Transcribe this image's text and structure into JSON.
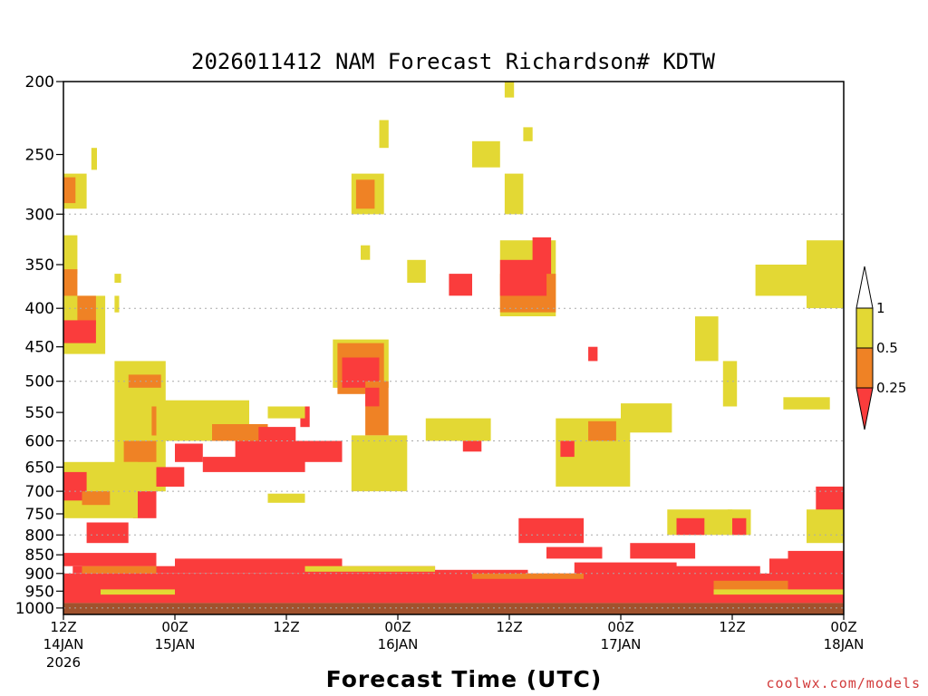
{
  "chart_data": {
    "type": "heatmap",
    "title": "2026011412 NAM Forecast Richardson# KDTW",
    "xlabel": "Forecast Time (UTC)",
    "ylabel": "",
    "credit": "coolwx.com/models",
    "y_scale": "log",
    "y_inverted": true,
    "ylim": [
      200,
      1020
    ],
    "y_ticks": [
      200,
      250,
      300,
      350,
      400,
      450,
      500,
      550,
      600,
      650,
      700,
      750,
      800,
      850,
      900,
      950,
      1000
    ],
    "y_gridlines": [
      300,
      400,
      500,
      600,
      700,
      800,
      900,
      1000
    ],
    "x_hours_range": [
      0,
      84
    ],
    "x_ticks": [
      {
        "hour": 0,
        "line1": "12Z",
        "line2": "14JAN",
        "line3": "2026"
      },
      {
        "hour": 12,
        "line1": "00Z",
        "line2": "15JAN",
        "line3": ""
      },
      {
        "hour": 24,
        "line1": "12Z",
        "line2": "",
        "line3": ""
      },
      {
        "hour": 36,
        "line1": "00Z",
        "line2": "16JAN",
        "line3": ""
      },
      {
        "hour": 48,
        "line1": "12Z",
        "line2": "",
        "line3": ""
      },
      {
        "hour": 60,
        "line1": "00Z",
        "line2": "17JAN",
        "line3": ""
      },
      {
        "hour": 72,
        "line1": "12Z",
        "line2": "",
        "line3": ""
      },
      {
        "hour": 84,
        "line1": "00Z",
        "line2": "18JAN",
        "line3": ""
      }
    ],
    "colorbar": {
      "labels": [
        "1",
        "0.5",
        "0.25"
      ],
      "colors": {
        "gt1": "#ffffff",
        "lt1": "#e3d834",
        "lt0_5": "#ef8225",
        "lt0_25": "#fa3c3c"
      }
    },
    "below_ground": {
      "from_pressure": 985,
      "color": "#a0522d"
    },
    "grid_color": "#aaaaaa",
    "regions": [
      {
        "level": "lt1",
        "h": [
          0,
          2.5
        ],
        "p": [
          265,
          295
        ]
      },
      {
        "level": "lt0_5",
        "h": [
          0,
          1.3
        ],
        "p": [
          268,
          290
        ]
      },
      {
        "level": "lt1",
        "h": [
          3,
          3.6
        ],
        "p": [
          245,
          262
        ]
      },
      {
        "level": "lt1",
        "h": [
          0,
          1.5
        ],
        "p": [
          320,
          360
        ]
      },
      {
        "level": "lt0_5",
        "h": [
          0,
          1.5
        ],
        "p": [
          355,
          390
        ]
      },
      {
        "level": "lt1",
        "h": [
          0,
          4.5
        ],
        "p": [
          385,
          460
        ]
      },
      {
        "level": "lt0_5",
        "h": [
          1.5,
          3.5
        ],
        "p": [
          385,
          420
        ]
      },
      {
        "level": "lt0_25",
        "h": [
          0,
          3.5
        ],
        "p": [
          415,
          445
        ]
      },
      {
        "level": "lt1",
        "h": [
          5.5,
          6
        ],
        "p": [
          385,
          405
        ]
      },
      {
        "level": "lt1",
        "h": [
          5.5,
          6.2
        ],
        "p": [
          360,
          370
        ]
      },
      {
        "level": "lt1",
        "h": [
          5.5,
          11
        ],
        "p": [
          470,
          700
        ]
      },
      {
        "level": "lt0_5",
        "h": [
          7,
          10.5
        ],
        "p": [
          490,
          510
        ]
      },
      {
        "level": "lt0_5",
        "h": [
          9.5,
          11.5
        ],
        "p": [
          540,
          590
        ]
      },
      {
        "level": "lt0_5",
        "h": [
          6.5,
          10
        ],
        "p": [
          600,
          640
        ]
      },
      {
        "level": "lt0_25",
        "h": [
          12,
          15
        ],
        "p": [
          605,
          640
        ]
      },
      {
        "level": "lt0_25",
        "h": [
          10,
          13
        ],
        "p": [
          650,
          690
        ]
      },
      {
        "level": "lt0_25",
        "h": [
          7.5,
          10
        ],
        "p": [
          700,
          760
        ]
      },
      {
        "level": "lt1",
        "h": [
          0,
          8
        ],
        "p": [
          640,
          760
        ]
      },
      {
        "level": "lt0_25",
        "h": [
          0,
          2.5
        ],
        "p": [
          660,
          720
        ]
      },
      {
        "level": "lt0_5",
        "h": [
          2,
          5
        ],
        "p": [
          700,
          730
        ]
      },
      {
        "level": "lt0_25",
        "h": [
          2.5,
          7
        ],
        "p": [
          770,
          820
        ]
      },
      {
        "level": "lt0_25",
        "h": [
          0,
          10
        ],
        "p": [
          845,
          880
        ]
      },
      {
        "level": "lt1",
        "h": [
          10,
          20
        ],
        "p": [
          530,
          600
        ]
      },
      {
        "level": "lt0_5",
        "h": [
          16,
          22
        ],
        "p": [
          570,
          600
        ]
      },
      {
        "level": "lt0_25",
        "h": [
          15,
          26
        ],
        "p": [
          630,
          660
        ]
      },
      {
        "level": "lt0_25",
        "h": [
          18.5,
          30
        ],
        "p": [
          600,
          640
        ]
      },
      {
        "level": "lt0_25",
        "h": [
          21,
          25
        ],
        "p": [
          575,
          600
        ]
      },
      {
        "level": "lt0_25",
        "h": [
          25.5,
          26.5
        ],
        "p": [
          540,
          575
        ]
      },
      {
        "level": "lt1",
        "h": [
          22,
          26
        ],
        "p": [
          540,
          560
        ]
      },
      {
        "level": "lt1",
        "h": [
          22,
          26
        ],
        "p": [
          705,
          725
        ]
      },
      {
        "level": "lt1",
        "h": [
          29,
          35
        ],
        "p": [
          440,
          510
        ]
      },
      {
        "level": "lt0_5",
        "h": [
          29.5,
          34.5
        ],
        "p": [
          445,
          520
        ]
      },
      {
        "level": "lt0_25",
        "h": [
          30,
          34
        ],
        "p": [
          465,
          510
        ]
      },
      {
        "level": "lt0_5",
        "h": [
          32.5,
          35
        ],
        "p": [
          500,
          590
        ]
      },
      {
        "level": "lt0_25",
        "h": [
          32.5,
          34
        ],
        "p": [
          510,
          540
        ]
      },
      {
        "level": "lt1",
        "h": [
          31,
          34.5
        ],
        "p": [
          265,
          300
        ]
      },
      {
        "level": "lt0_5",
        "h": [
          31.5,
          33.5
        ],
        "p": [
          270,
          295
        ]
      },
      {
        "level": "lt1",
        "h": [
          34,
          35
        ],
        "p": [
          225,
          245
        ]
      },
      {
        "level": "lt1",
        "h": [
          32,
          33
        ],
        "p": [
          330,
          345
        ]
      },
      {
        "level": "lt1",
        "h": [
          31,
          37
        ],
        "p": [
          590,
          700
        ]
      },
      {
        "level": "lt1",
        "h": [
          37,
          39
        ],
        "p": [
          345,
          370
        ]
      },
      {
        "level": "lt0_25",
        "h": [
          41.5,
          44
        ],
        "p": [
          360,
          385
        ]
      },
      {
        "level": "lt1",
        "h": [
          39,
          46
        ],
        "p": [
          560,
          600
        ]
      },
      {
        "level": "lt0_25",
        "h": [
          43,
          45
        ],
        "p": [
          600,
          620
        ]
      },
      {
        "level": "lt1",
        "h": [
          44,
          47
        ],
        "p": [
          240,
          260
        ]
      },
      {
        "level": "lt1",
        "h": [
          47,
          53
        ],
        "p": [
          325,
          410
        ]
      },
      {
        "level": "lt0_5",
        "h": [
          47,
          53
        ],
        "p": [
          360,
          405
        ]
      },
      {
        "level": "lt0_25",
        "h": [
          47,
          52
        ],
        "p": [
          345,
          385
        ]
      },
      {
        "level": "lt0_25",
        "h": [
          50.5,
          52.5
        ],
        "p": [
          322,
          360
        ]
      },
      {
        "level": "lt1",
        "h": [
          47.5,
          49.5
        ],
        "p": [
          265,
          300
        ]
      },
      {
        "level": "lt1",
        "h": [
          47.5,
          48.5
        ],
        "p": [
          200,
          210
        ]
      },
      {
        "level": "lt1",
        "h": [
          49.5,
          50.5
        ],
        "p": [
          230,
          240
        ]
      },
      {
        "level": "lt0_25",
        "h": [
          56.5,
          57.5
        ],
        "p": [
          450,
          470
        ]
      },
      {
        "level": "lt1",
        "h": [
          53,
          61
        ],
        "p": [
          560,
          690
        ]
      },
      {
        "level": "lt0_5",
        "h": [
          56.5,
          59.5
        ],
        "p": [
          565,
          600
        ]
      },
      {
        "level": "lt0_25",
        "h": [
          53.5,
          55
        ],
        "p": [
          600,
          630
        ]
      },
      {
        "level": "lt1",
        "h": [
          60,
          65.5
        ],
        "p": [
          535,
          585
        ]
      },
      {
        "level": "lt1",
        "h": [
          68,
          70.5
        ],
        "p": [
          410,
          470
        ]
      },
      {
        "level": "lt1",
        "h": [
          71,
          72.5
        ],
        "p": [
          470,
          540
        ]
      },
      {
        "level": "lt1",
        "h": [
          74.5,
          84
        ],
        "p": [
          350,
          385
        ]
      },
      {
        "level": "lt1",
        "h": [
          80,
          84
        ],
        "p": [
          325,
          400
        ]
      },
      {
        "level": "lt1",
        "h": [
          77.5,
          82.5
        ],
        "p": [
          525,
          545
        ]
      },
      {
        "level": "lt1",
        "h": [
          65,
          72
        ],
        "p": [
          740,
          800
        ]
      },
      {
        "level": "lt0_25",
        "h": [
          66,
          69
        ],
        "p": [
          760,
          800
        ]
      },
      {
        "level": "lt1",
        "h": [
          71.5,
          74
        ],
        "p": [
          740,
          800
        ]
      },
      {
        "level": "lt0_25",
        "h": [
          72,
          73.5
        ],
        "p": [
          760,
          800
        ]
      },
      {
        "level": "lt0_25",
        "h": [
          81,
          84
        ],
        "p": [
          690,
          760
        ]
      },
      {
        "level": "lt1",
        "h": [
          80,
          84
        ],
        "p": [
          740,
          820
        ]
      },
      {
        "level": "lt0_25",
        "h": [
          78,
          84
        ],
        "p": [
          840,
          880
        ]
      },
      {
        "level": "lt0_25",
        "h": [
          49,
          56
        ],
        "p": [
          760,
          820
        ]
      },
      {
        "level": "lt0_25",
        "h": [
          52,
          58
        ],
        "p": [
          830,
          860
        ]
      },
      {
        "level": "lt0_25",
        "h": [
          61,
          68
        ],
        "p": [
          820,
          860
        ]
      },
      {
        "level": "lt0_25",
        "h": [
          0,
          84
        ],
        "p": [
          900,
          985
        ]
      },
      {
        "level": "lt0_25",
        "h": [
          1,
          12
        ],
        "p": [
          880,
          900
        ]
      },
      {
        "level": "lt0_25",
        "h": [
          12,
          30
        ],
        "p": [
          860,
          900
        ]
      },
      {
        "level": "lt0_25",
        "h": [
          25,
          40
        ],
        "p": [
          880,
          900
        ]
      },
      {
        "level": "lt0_25",
        "h": [
          40,
          50
        ],
        "p": [
          890,
          905
        ]
      },
      {
        "level": "lt0_25",
        "h": [
          55,
          66
        ],
        "p": [
          870,
          905
        ]
      },
      {
        "level": "lt0_25",
        "h": [
          66,
          75
        ],
        "p": [
          880,
          905
        ]
      },
      {
        "level": "lt0_25",
        "h": [
          76,
          84
        ],
        "p": [
          860,
          905
        ]
      },
      {
        "level": "lt0_5",
        "h": [
          2,
          10
        ],
        "p": [
          880,
          900
        ]
      },
      {
        "level": "lt0_5",
        "h": [
          44,
          56
        ],
        "p": [
          900,
          915
        ]
      },
      {
        "level": "lt0_5",
        "h": [
          70,
          78
        ],
        "p": [
          920,
          945
        ]
      },
      {
        "level": "lt1",
        "h": [
          4,
          12
        ],
        "p": [
          945,
          960
        ]
      },
      {
        "level": "lt1",
        "h": [
          26,
          40
        ],
        "p": [
          880,
          895
        ]
      },
      {
        "level": "lt1",
        "h": [
          70,
          84
        ],
        "p": [
          945,
          960
        ]
      }
    ]
  }
}
